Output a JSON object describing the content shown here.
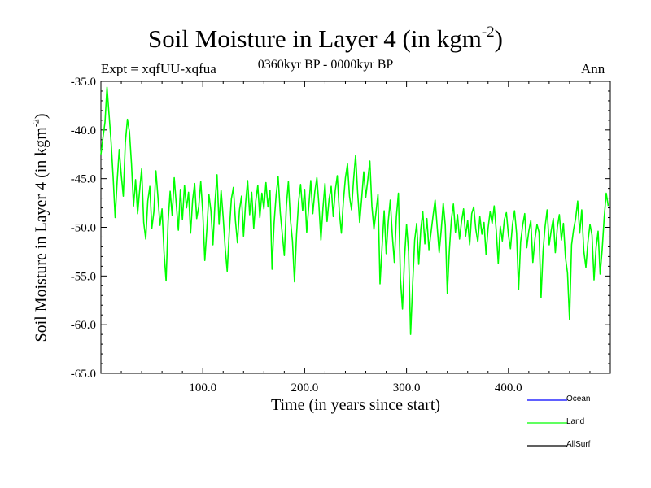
{
  "chart_data": {
    "type": "line",
    "title": "Soil Moisture in Layer 4 (in kgm",
    "title_superscript": "-2",
    "title_suffix": ")",
    "experiment_label": "Expt = xqfUU-xqfua",
    "period_label": "0360kyr BP - 0000kyr BP",
    "season_label": "Ann",
    "xlabel": "Time (in years since start)",
    "ylabel": "Soil Moisture in Layer 4 (in kgm",
    "ylabel_superscript": "-2",
    "ylabel_suffix": ")",
    "xlim": [
      0,
      500
    ],
    "ylim": [
      -65,
      -35
    ],
    "x_ticks": [
      100,
      200,
      300,
      400
    ],
    "x_tick_labels": [
      "100.0",
      "200.0",
      "300.0",
      "400.0"
    ],
    "y_ticks": [
      -35,
      -40,
      -45,
      -50,
      -55,
      -60,
      -65
    ],
    "y_tick_labels": [
      "-35.0",
      "-40.0",
      "-45.0",
      "-50.0",
      "-55.0",
      "-60.0",
      "-65.0"
    ],
    "legend_position": "bottom-right",
    "series": [
      {
        "name": "Ocean",
        "color": "#0000ff",
        "x": [],
        "values": []
      },
      {
        "name": "Land",
        "color": "#00ff00",
        "x": [
          0,
          2,
          4,
          6,
          8,
          10,
          12,
          14,
          16,
          18,
          20,
          22,
          24,
          26,
          28,
          30,
          32,
          34,
          36,
          38,
          40,
          42,
          44,
          46,
          48,
          50,
          52,
          54,
          56,
          58,
          60,
          62,
          64,
          66,
          68,
          70,
          72,
          74,
          76,
          78,
          80,
          82,
          84,
          86,
          88,
          90,
          92,
          94,
          96,
          98,
          100,
          102,
          104,
          106,
          108,
          110,
          112,
          114,
          116,
          118,
          120,
          122,
          124,
          126,
          128,
          130,
          132,
          134,
          136,
          138,
          140,
          142,
          144,
          146,
          148,
          150,
          152,
          154,
          156,
          158,
          160,
          162,
          164,
          166,
          168,
          170,
          172,
          174,
          176,
          178,
          180,
          182,
          184,
          186,
          188,
          190,
          192,
          194,
          196,
          198,
          200,
          202,
          204,
          206,
          208,
          210,
          212,
          214,
          216,
          218,
          220,
          222,
          224,
          226,
          228,
          230,
          232,
          234,
          236,
          238,
          240,
          242,
          244,
          246,
          248,
          250,
          252,
          254,
          256,
          258,
          260,
          262,
          264,
          266,
          268,
          270,
          272,
          274,
          276,
          278,
          280,
          282,
          284,
          286,
          288,
          290,
          292,
          294,
          296,
          298,
          300,
          302,
          304,
          306,
          308,
          310,
          312,
          314,
          316,
          318,
          320,
          322,
          324,
          326,
          328,
          330,
          332,
          334,
          336,
          338,
          340,
          342,
          344,
          346,
          348,
          350,
          352,
          354,
          356,
          358,
          360,
          362,
          364,
          366,
          368,
          370,
          372,
          374,
          376,
          378,
          380,
          382,
          384,
          386,
          388,
          390,
          392,
          394,
          396,
          398,
          400,
          402,
          404,
          406,
          408,
          410,
          412,
          414,
          416,
          418,
          420,
          422,
          424,
          426,
          428,
          430,
          432,
          434,
          436,
          438,
          440,
          442,
          444,
          446,
          448,
          450,
          452,
          454,
          456,
          458,
          460,
          462,
          464,
          466,
          468,
          470,
          472,
          474,
          476,
          478,
          480,
          482,
          484,
          486,
          488,
          490,
          492,
          494,
          496,
          498
        ],
        "values": [
          -42.5,
          -40.8,
          -39.2,
          -35.6,
          -38.4,
          -41.2,
          -44.8,
          -49.0,
          -45.2,
          -42.0,
          -44.6,
          -46.8,
          -41.3,
          -38.9,
          -40.2,
          -43.5,
          -47.8,
          -45.1,
          -48.6,
          -46.2,
          -44.0,
          -49.5,
          -51.2,
          -47.3,
          -45.8,
          -50.1,
          -48.4,
          -44.2,
          -46.9,
          -49.8,
          -48.1,
          -52.6,
          -55.5,
          -49.4,
          -46.3,
          -48.8,
          -44.9,
          -47.6,
          -50.3,
          -46.1,
          -49.2,
          -45.7,
          -48.0,
          -46.4,
          -50.6,
          -47.2,
          -45.5,
          -49.1,
          -47.9,
          -45.3,
          -48.5,
          -53.4,
          -50.2,
          -46.6,
          -48.3,
          -51.8,
          -47.4,
          -44.6,
          -49.7,
          -46.2,
          -48.9,
          -52.1,
          -54.5,
          -50.4,
          -47.1,
          -45.9,
          -49.3,
          -51.6,
          -48.2,
          -46.8,
          -50.9,
          -47.5,
          -45.2,
          -48.7,
          -46.4,
          -50.1,
          -47.3,
          -45.7,
          -49.0,
          -46.5,
          -48.1,
          -45.4,
          -47.9,
          -46.2,
          -54.3,
          -49.6,
          -46.7,
          -44.8,
          -48.5,
          -50.7,
          -52.9,
          -47.8,
          -45.3,
          -49.2,
          -51.4,
          -55.6,
          -50.8,
          -47.4,
          -45.6,
          -48.3,
          -46.1,
          -50.5,
          -47.9,
          -45.2,
          -48.6,
          -46.3,
          -44.9,
          -47.7,
          -51.3,
          -48.0,
          -45.5,
          -49.4,
          -47.1,
          -45.8,
          -48.9,
          -46.2,
          -44.7,
          -48.4,
          -50.6,
          -47.3,
          -44.9,
          -43.5,
          -46.8,
          -48.2,
          -45.1,
          -42.6,
          -46.4,
          -49.5,
          -47.0,
          -44.3,
          -46.9,
          -45.1,
          -43.2,
          -47.8,
          -50.2,
          -48.5,
          -46.6,
          -55.8,
          -51.9,
          -48.3,
          -52.7,
          -49.4,
          -47.2,
          -50.8,
          -53.6,
          -48.9,
          -46.5,
          -55.3,
          -58.4,
          -53.2,
          -49.7,
          -52.5,
          -61.0,
          -55.9,
          -51.3,
          -49.6,
          -53.8,
          -50.2,
          -48.4,
          -51.7,
          -49.1,
          -52.3,
          -50.6,
          -48.8,
          -47.2,
          -49.9,
          -52.6,
          -50.3,
          -47.5,
          -49.8,
          -56.8,
          -52.4,
          -49.2,
          -47.6,
          -50.5,
          -48.7,
          -51.2,
          -49.4,
          -48.1,
          -50.9,
          -49.3,
          -51.8,
          -48.6,
          -47.9,
          -50.2,
          -51.5,
          -48.9,
          -50.7,
          -49.5,
          -52.8,
          -50.1,
          -48.4,
          -49.6,
          -47.8,
          -50.3,
          -53.7,
          -49.9,
          -51.4,
          -49.2,
          -48.5,
          -50.8,
          -52.2,
          -49.7,
          -48.3,
          -50.6,
          -56.4,
          -51.5,
          -49.8,
          -48.6,
          -52.1,
          -50.4,
          -49.3,
          -53.6,
          -51.2,
          -49.7,
          -50.5,
          -57.2,
          -52.4,
          -49.9,
          -48.2,
          -51.8,
          -50.3,
          -49.1,
          -52.6,
          -50.0,
          -48.7,
          -51.3,
          -49.6,
          -53.1,
          -54.7,
          -59.5,
          -51.8,
          -50.2,
          -49.1,
          -47.3,
          -50.6,
          -48.2,
          -52.4,
          -54.1,
          -51.5,
          -49.7,
          -50.8,
          -55.4,
          -52.1,
          -50.4,
          -54.8,
          -52.3,
          -49.0,
          -46.5,
          -47.8
        ]
      },
      {
        "name": "AllSurf",
        "color": "#000000",
        "x": [],
        "values": []
      }
    ]
  }
}
